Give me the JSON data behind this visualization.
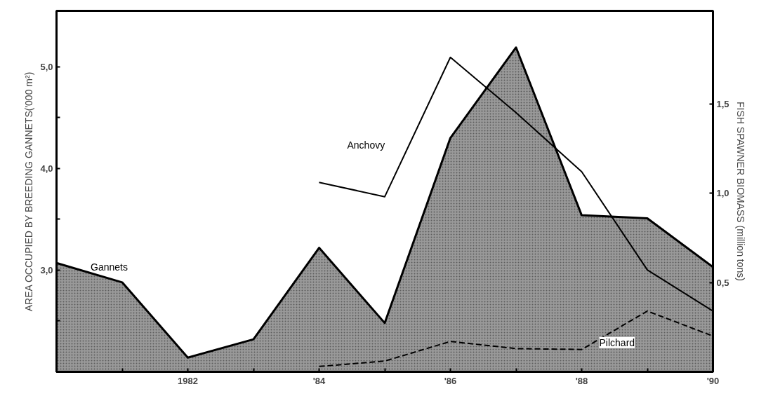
{
  "chart_data": {
    "type": "line",
    "ylabel": "AREA OCCUPIED BY BREEDING GANNETS('000 m²)",
    "y2label": "FISH SPAWNER BIOMASS (million tons)",
    "x": [
      1980,
      1981,
      1982,
      1983,
      1984,
      1985,
      1986,
      1987,
      1988,
      1989,
      1990
    ],
    "xlim": [
      1980,
      1990
    ],
    "xticks": [
      {
        "value": 1980,
        "label": null
      },
      {
        "value": 1981,
        "label": null
      },
      {
        "value": 1982,
        "label": "1982"
      },
      {
        "value": 1983,
        "label": null
      },
      {
        "value": 1984,
        "label": "'84"
      },
      {
        "value": 1985,
        "label": null
      },
      {
        "value": 1986,
        "label": "'86"
      },
      {
        "value": 1987,
        "label": null
      },
      {
        "value": 1988,
        "label": "'88"
      },
      {
        "value": 1989,
        "label": null
      },
      {
        "value": 1990,
        "label": "'90"
      }
    ],
    "ylim": [
      2.0,
      5.55
    ],
    "yticks": [
      {
        "value": 2.5,
        "label": null
      },
      {
        "value": 3,
        "label": "3,0"
      },
      {
        "value": 3.5,
        "label": null
      },
      {
        "value": 4,
        "label": "4,0"
      },
      {
        "value": 4.5,
        "label": null
      },
      {
        "value": 5,
        "label": "5,0"
      }
    ],
    "y2lim": [
      0,
      2.02
    ],
    "y2ticks": [
      {
        "value": 0.5,
        "label": "0,5"
      },
      {
        "value": 1.0,
        "label": "1,0"
      },
      {
        "value": 1.5,
        "label": "1,5"
      }
    ],
    "grid": false,
    "series": [
      {
        "name": "Gannets",
        "type": "area",
        "color": "#999999",
        "values": [
          3.07,
          2.88,
          2.14,
          2.32,
          3.22,
          2.48,
          4.3,
          5.19,
          3.54,
          3.51,
          3.03
        ]
      },
      {
        "name": "Anchovy",
        "axis": "y2",
        "color": "#000000",
        "values": [
          null,
          null,
          null,
          null,
          1.06,
          0.98,
          1.76,
          1.45,
          1.12,
          0.57,
          0.34
        ]
      },
      {
        "name": "Pilchard",
        "axis": "y2",
        "color": "#000000",
        "line_style": "dashed",
        "values": [
          null,
          null,
          null,
          null,
          0.03,
          0.06,
          0.17,
          0.13,
          0.125,
          0.34,
          0.2
        ]
      }
    ]
  }
}
